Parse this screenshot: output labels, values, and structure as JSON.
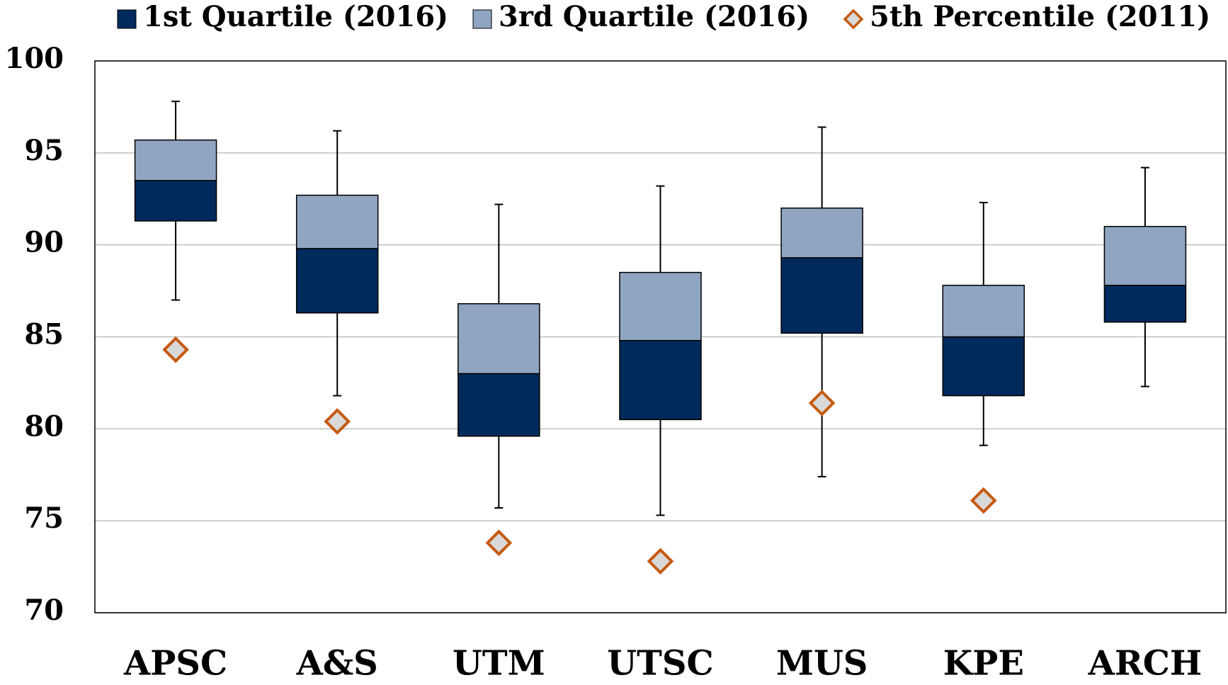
{
  "chart_data": {
    "type": "box",
    "categories": [
      "APSC",
      "A&S",
      "UTM",
      "UTSC",
      "MUS",
      "KPE",
      "ARCH"
    ],
    "whisker_low": [
      87.0,
      81.8,
      75.7,
      75.3,
      77.4,
      79.1,
      82.3
    ],
    "q1": [
      91.3,
      86.3,
      79.6,
      80.5,
      85.2,
      81.8,
      85.8
    ],
    "median": [
      93.5,
      89.8,
      83.0,
      84.8,
      89.3,
      85.0,
      87.8
    ],
    "q3": [
      95.7,
      92.7,
      86.8,
      88.5,
      92.0,
      87.8,
      91.0
    ],
    "whisker_high": [
      97.8,
      96.2,
      92.2,
      93.2,
      96.4,
      92.3,
      94.2
    ],
    "series": [
      {
        "name": "1st Quartile (2016)",
        "color": "#002a5c"
      },
      {
        "name": "3rd Quartile (2016)",
        "color": "#8fa5c2"
      },
      {
        "name": "5th Percentile (2011)",
        "color": "#c55a11",
        "values": [
          84.3,
          80.4,
          73.8,
          72.8,
          81.4,
          76.1,
          null
        ]
      }
    ],
    "ylim": [
      70,
      100
    ],
    "yticks": [
      70,
      75,
      80,
      85,
      90,
      95,
      100
    ],
    "grid": true
  }
}
